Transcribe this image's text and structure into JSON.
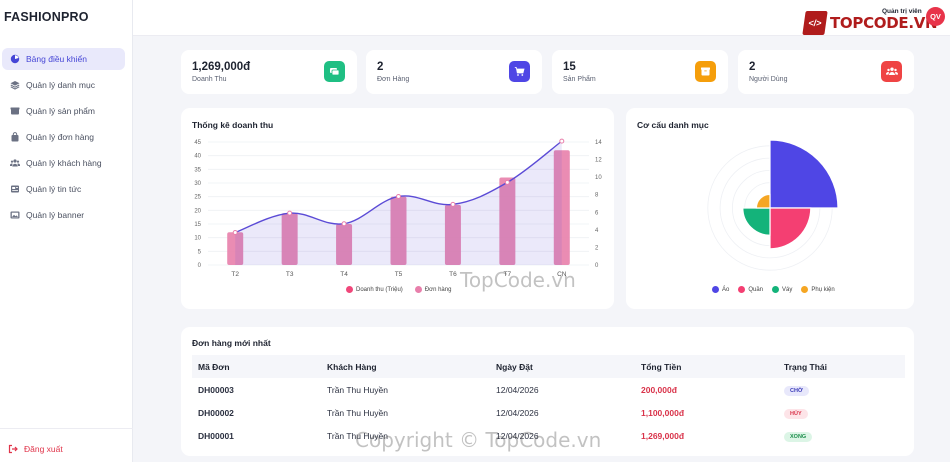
{
  "brand": "FASHIONPRO",
  "sidebar": {
    "items": [
      {
        "label": "Bảng điều khiển",
        "icon": "dashboard-icon",
        "active": true
      },
      {
        "label": "Quản lý danh mục",
        "icon": "layers-icon"
      },
      {
        "label": "Quản lý sản phẩm",
        "icon": "box-icon"
      },
      {
        "label": "Quản lý đơn hàng",
        "icon": "bag-icon"
      },
      {
        "label": "Quản lý khách hàng",
        "icon": "users-icon"
      },
      {
        "label": "Quản lý tin tức",
        "icon": "news-icon"
      },
      {
        "label": "Quản lý banner",
        "icon": "image-icon"
      }
    ],
    "logout": "Đăng xuất"
  },
  "topbar": {
    "logo_text": "TOPCODE.VN",
    "admin_label": "Quản trị viên",
    "avatar_initials": "QV"
  },
  "stats": [
    {
      "value": "1,269,000đ",
      "label": "Doanh Thu",
      "color": "#1fbf83",
      "icon": "money-icon"
    },
    {
      "value": "2",
      "label": "Đơn Hàng",
      "color": "#4f46e5",
      "icon": "cart-icon"
    },
    {
      "value": "15",
      "label": "Sản Phẩm",
      "color": "#f59e0b",
      "icon": "box-icon"
    },
    {
      "value": "2",
      "label": "Người Dùng",
      "color": "#ef4444",
      "icon": "users-icon"
    }
  ],
  "revenue_panel": {
    "title": "Thống kê doanh thu"
  },
  "category_panel": {
    "title": "Cơ cấu danh mục"
  },
  "chart_data": [
    {
      "type": "bar",
      "categories": [
        "T2",
        "T3",
        "T4",
        "T5",
        "T6",
        "T7",
        "CN"
      ],
      "series": [
        {
          "name": "Doanh thu (Triệu)",
          "type": "bar",
          "axis": "left",
          "values": [
            12,
            19,
            15,
            25,
            22,
            32,
            42
          ],
          "color": "#e87fab"
        },
        {
          "name": "Đơn hàng",
          "type": "area",
          "axis": "right",
          "values": [
            3.7,
            5.9,
            4.7,
            7.8,
            6.9,
            9.4,
            14.1
          ],
          "color": "#5b4bd6"
        }
      ],
      "y_left": {
        "ticks": [
          0,
          5,
          10,
          15,
          20,
          25,
          30,
          35,
          40,
          45
        ],
        "range": [
          0,
          45
        ]
      },
      "y_right": {
        "ticks": [
          0,
          2,
          4,
          6,
          8,
          10,
          12,
          14
        ],
        "range": [
          0,
          14
        ]
      },
      "legend_position": "bottom",
      "grid": true
    },
    {
      "type": "pie",
      "variant": "polar-area",
      "categories": [
        "Áo",
        "Quần",
        "Váy",
        "Phụ kiện"
      ],
      "values": [
        10,
        6,
        4,
        2
      ],
      "colors": [
        "#4f46e5",
        "#f43f72",
        "#14b37a",
        "#f5a623"
      ],
      "legend_position": "bottom"
    }
  ],
  "orders": {
    "title": "Đơn hàng mới nhất",
    "columns": [
      "Mã Đơn",
      "Khách Hàng",
      "Ngày Đặt",
      "Tổng Tiền",
      "Trạng Thái"
    ],
    "rows": [
      {
        "id": "DH00003",
        "customer": "Trần Thu Huyền",
        "date": "12/04/2026",
        "total": "200,000đ",
        "status": "CHỜ",
        "status_class": "cho"
      },
      {
        "id": "DH00002",
        "customer": "Trần Thu Huyền",
        "date": "12/04/2026",
        "total": "1,100,000đ",
        "status": "HỦY",
        "status_class": "huy"
      },
      {
        "id": "DH00001",
        "customer": "Trần Thu Huyền",
        "date": "12/04/2026",
        "total": "1,269,000đ",
        "status": "XONG",
        "status_class": "xong"
      }
    ]
  },
  "watermarks": [
    "TopCode.vn",
    "Copyright © TopCode.vn"
  ]
}
